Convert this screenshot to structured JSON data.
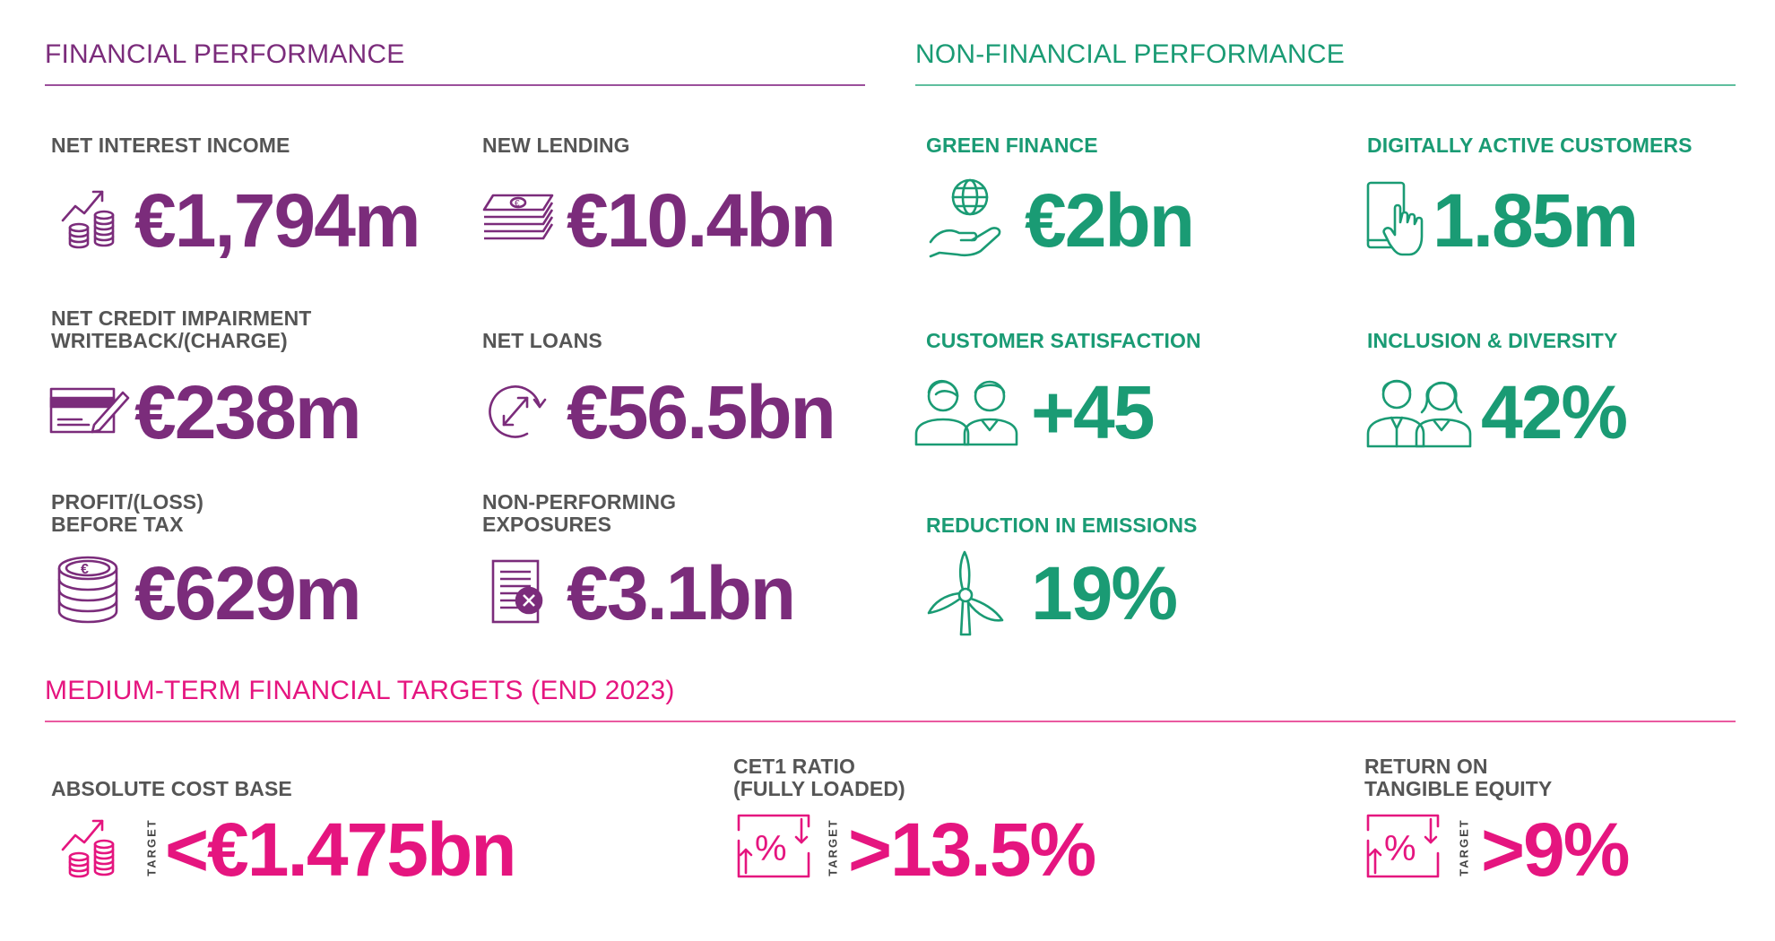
{
  "financial": {
    "title": "FINANCIAL PERFORMANCE",
    "color": "#7b2c7b",
    "metrics": [
      {
        "label": "NET INTEREST INCOME",
        "value": "€1,794m",
        "icon": "growth-coins-icon"
      },
      {
        "label": "NEW LENDING",
        "value": "€10.4bn",
        "icon": "banknotes-stack-icon"
      },
      {
        "label": "NET CREDIT IMPAIRMENT\nWRITEBACK/(CHARGE)",
        "value": "€238m",
        "icon": "cheque-pen-icon"
      },
      {
        "label": "NET LOANS",
        "value": "€56.5bn",
        "icon": "circular-arrow-icon"
      },
      {
        "label": "PROFIT/(LOSS)\nBEFORE TAX",
        "value": "€629m",
        "icon": "euro-coin-stack-icon"
      },
      {
        "label": "NON-PERFORMING\nEXPOSURES",
        "value": "€3.1bn",
        "icon": "document-cross-icon"
      }
    ]
  },
  "non_financial": {
    "title": "NON-FINANCIAL PERFORMANCE",
    "color": "#1a9b74",
    "metrics": [
      {
        "label": "GREEN FINANCE",
        "value": "€2bn",
        "icon": "globe-hand-icon"
      },
      {
        "label": "DIGITALLY ACTIVE CUSTOMERS",
        "value": "1.85m",
        "icon": "tablet-touch-icon"
      },
      {
        "label": "CUSTOMER SATISFACTION",
        "value": "+45",
        "icon": "two-people-icon"
      },
      {
        "label": "INCLUSION & DIVERSITY",
        "value": "42%",
        "icon": "man-woman-icon"
      },
      {
        "label": "REDUCTION IN EMISSIONS",
        "value": "19%",
        "icon": "wind-turbine-icon"
      }
    ]
  },
  "targets": {
    "title": "MEDIUM-TERM FINANCIAL TARGETS (END 2023)",
    "color": "#e5157f",
    "tag": "TARGET",
    "metrics": [
      {
        "label": "ABSOLUTE COST BASE",
        "value": "<€1.475bn",
        "icon": "growth-coins-icon"
      },
      {
        "label": "CET1 RATIO\n(FULLY LOADED)",
        "value": ">13.5%",
        "icon": "percent-arrows-icon"
      },
      {
        "label": "RETURN ON\nTANGIBLE EQUITY",
        "value": ">9%",
        "icon": "percent-arrows-icon"
      }
    ]
  }
}
